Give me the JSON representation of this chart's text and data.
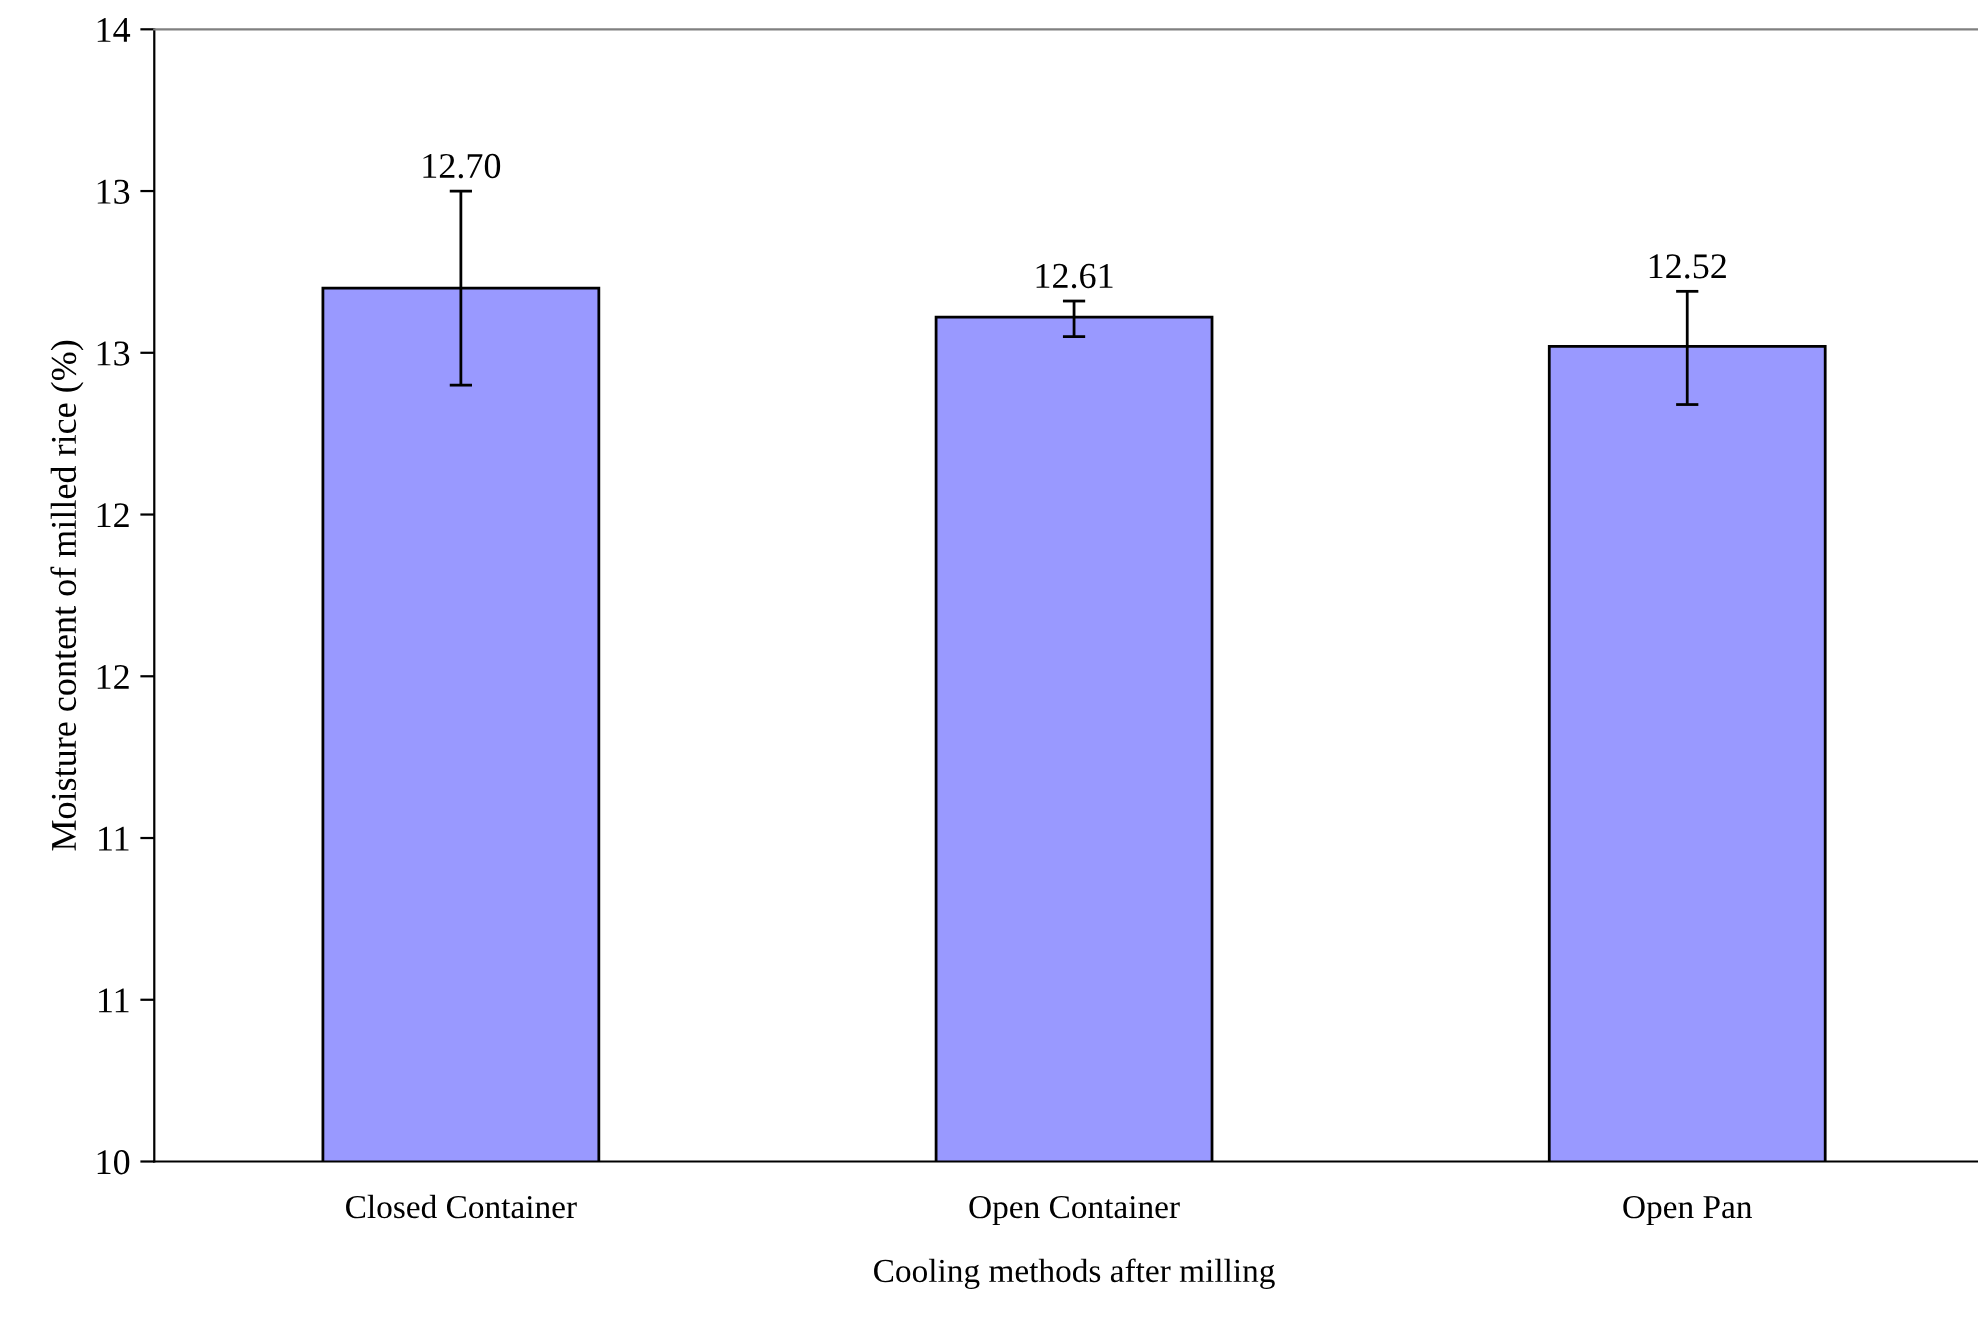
{
  "chart_data": {
    "type": "bar",
    "xlabel": "Cooling methods after milling",
    "ylabel": "Moisture content of milled rice (%)",
    "categories": [
      "Closed Container",
      "Open Container",
      "Open Pan"
    ],
    "values": [
      12.7,
      12.61,
      12.52
    ],
    "errors": [
      [
        12.4,
        13.0
      ],
      [
        12.55,
        12.66
      ],
      [
        12.34,
        12.69
      ]
    ],
    "value_labels": [
      "12.70",
      "12.61",
      "12.52"
    ],
    "color": "#9999ff",
    "ylim": [
      10,
      13.5
    ],
    "yticks": [
      10,
      {
        "value": 10.5,
        "label": "11"
      },
      11,
      {
        "value": 11.5,
        "label": "12"
      },
      12,
      {
        "value": 12.5,
        "label": "13"
      },
      13,
      {
        "value": 13.5,
        "label": "14"
      }
    ],
    "grid": false
  }
}
